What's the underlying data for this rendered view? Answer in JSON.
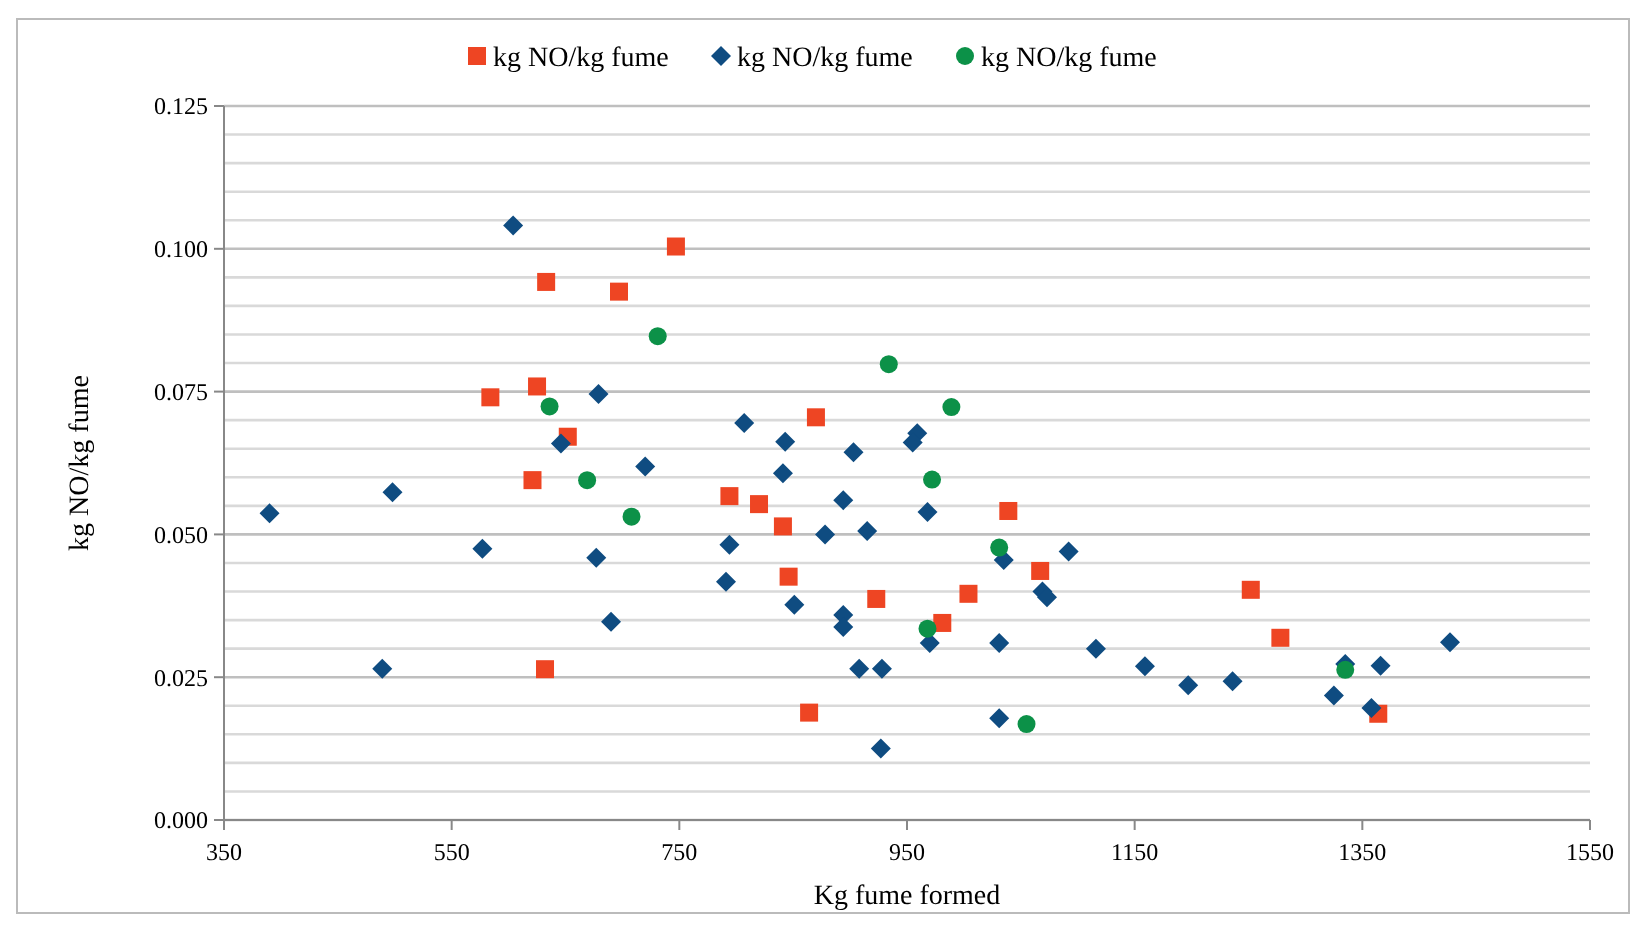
{
  "chart_data": {
    "type": "scatter",
    "xlabel": "Kg fume formed",
    "ylabel": "kg NO/kg fume",
    "legend": "top",
    "grid": "y",
    "xlim": [
      350,
      1550
    ],
    "xticks": [
      350,
      550,
      750,
      950,
      1150,
      1350,
      1550
    ],
    "ylim": [
      0,
      0.125
    ],
    "yticks": [
      {
        "value": 0,
        "label": "0.000"
      },
      {
        "value": 0.005,
        "label": null
      },
      {
        "value": 0.01,
        "label": null
      },
      {
        "value": 0.015,
        "label": null
      },
      {
        "value": 0.02,
        "label": null
      },
      0.025,
      {
        "value": 0.03,
        "label": null
      },
      {
        "value": 0.035,
        "label": null
      },
      {
        "value": 0.04,
        "label": null
      },
      {
        "value": 0.045,
        "label": null
      },
      {
        "value": 0.05,
        "label": "0.050"
      },
      {
        "value": 0.055,
        "label": null
      },
      {
        "value": 0.06,
        "label": null
      },
      {
        "value": 0.065,
        "label": null
      },
      {
        "value": 0.07,
        "label": null
      },
      0.075,
      {
        "value": 0.08,
        "label": null
      },
      {
        "value": 0.085,
        "label": null
      },
      {
        "value": 0.09,
        "label": null
      },
      {
        "value": 0.095,
        "label": null
      },
      {
        "value": 0.1,
        "label": "0.100"
      },
      {
        "value": 0.105,
        "label": null
      },
      {
        "value": 0.11,
        "label": null
      },
      {
        "value": 0.115,
        "label": null
      },
      {
        "value": 0.12,
        "label": null
      },
      0.125
    ],
    "series": [
      {
        "name": "kg NO/kg fume",
        "color": "#ee4523",
        "marker": "square",
        "x": [
          747,
          633,
          697,
          584,
          625,
          652,
          621,
          632,
          794,
          820,
          841,
          846,
          870,
          864,
          923,
          981,
          1004,
          1039,
          1067,
          1252,
          1278,
          1364
        ],
        "values": [
          0.1004,
          0.0942,
          0.0925,
          0.074,
          0.0759,
          0.0671,
          0.0595,
          0.0264,
          0.0567,
          0.0553,
          0.0514,
          0.0426,
          0.0705,
          0.0188,
          0.0387,
          0.0345,
          0.0396,
          0.0541,
          0.0436,
          0.0403,
          0.0319,
          0.0186
        ]
      },
      {
        "name": "kg NO/kg fume",
        "color": "#0f4c81",
        "marker": "diamond",
        "x": [
          604,
          679,
          646,
          390,
          498,
          577,
          677,
          690,
          489,
          720,
          807,
          843,
          841,
          903,
          894,
          878,
          915,
          794,
          791,
          851,
          894,
          894,
          908,
          928,
          927,
          959,
          955,
          968,
          1035,
          1092,
          1069,
          1073,
          970,
          1031,
          1116,
          1159,
          1197,
          1236,
          1335,
          1366,
          1427,
          1325,
          1358,
          1031
        ],
        "values": [
          0.1041,
          0.0746,
          0.0659,
          0.0537,
          0.0574,
          0.0475,
          0.0459,
          0.0347,
          0.0265,
          0.0619,
          0.0695,
          0.0662,
          0.0607,
          0.0644,
          0.056,
          0.05,
          0.0506,
          0.0482,
          0.0417,
          0.0377,
          0.0359,
          0.0338,
          0.0265,
          0.0265,
          0.0125,
          0.0677,
          0.0661,
          0.0539,
          0.0455,
          0.047,
          0.04,
          0.039,
          0.031,
          0.031,
          0.03,
          0.0269,
          0.0236,
          0.0243,
          0.0273,
          0.027,
          0.0311,
          0.0218,
          0.0196,
          0.0178
        ]
      },
      {
        "name": "kg NO/kg fume",
        "color": "#0c9148",
        "marker": "circle",
        "x": [
          731,
          934,
          636,
          669,
          708,
          989,
          972,
          1031,
          968,
          1055,
          1335
        ],
        "values": [
          0.0847,
          0.0798,
          0.0724,
          0.0595,
          0.0531,
          0.0723,
          0.0596,
          0.0477,
          0.0335,
          0.0168,
          0.0263
        ]
      }
    ]
  }
}
